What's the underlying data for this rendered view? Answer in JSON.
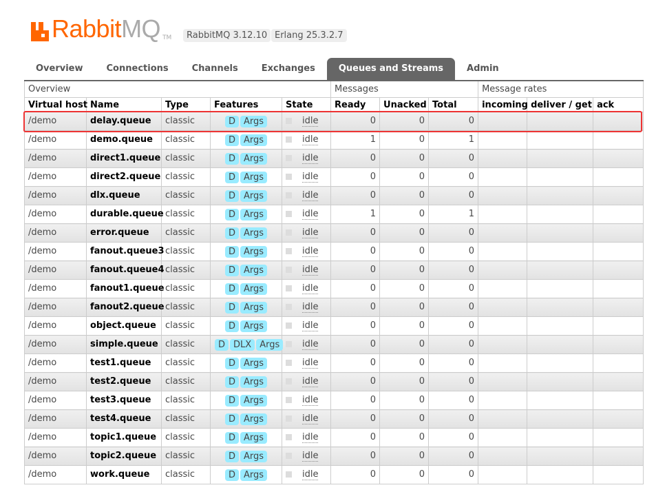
{
  "header": {
    "logo_brand": "Rabbit",
    "logo_product": "MQ",
    "logo_tm": "TM",
    "version": "RabbitMQ 3.12.10",
    "erlang": "Erlang 25.3.2.7"
  },
  "tabs": [
    {
      "label": "Overview"
    },
    {
      "label": "Connections"
    },
    {
      "label": "Channels"
    },
    {
      "label": "Exchanges"
    },
    {
      "label": "Queues and Streams",
      "active": true
    },
    {
      "label": "Admin"
    }
  ],
  "table": {
    "groups": {
      "overview": "Overview",
      "messages": "Messages",
      "rates": "Message rates"
    },
    "columns": [
      "Virtual host",
      "Name",
      "Type",
      "Features",
      "State",
      "Ready",
      "Unacked",
      "Total",
      "incoming",
      "deliver / get",
      "ack"
    ],
    "rows": [
      {
        "vhost": "/demo",
        "name": "delay.queue",
        "type": "classic",
        "features": [
          "D",
          "Args"
        ],
        "state": "idle",
        "ready": "0",
        "unacked": "0",
        "total": "0",
        "highlighted": true
      },
      {
        "vhost": "/demo",
        "name": "demo.queue",
        "type": "classic",
        "features": [
          "D",
          "Args"
        ],
        "state": "idle",
        "ready": "1",
        "unacked": "0",
        "total": "1"
      },
      {
        "vhost": "/demo",
        "name": "direct1.queue",
        "type": "classic",
        "features": [
          "D",
          "Args"
        ],
        "state": "idle",
        "ready": "0",
        "unacked": "0",
        "total": "0"
      },
      {
        "vhost": "/demo",
        "name": "direct2.queue",
        "type": "classic",
        "features": [
          "D",
          "Args"
        ],
        "state": "idle",
        "ready": "0",
        "unacked": "0",
        "total": "0"
      },
      {
        "vhost": "/demo",
        "name": "dlx.queue",
        "type": "classic",
        "features": [
          "D",
          "Args"
        ],
        "state": "idle",
        "ready": "0",
        "unacked": "0",
        "total": "0"
      },
      {
        "vhost": "/demo",
        "name": "durable.queue",
        "type": "classic",
        "features": [
          "D",
          "Args"
        ],
        "state": "idle",
        "ready": "1",
        "unacked": "0",
        "total": "1"
      },
      {
        "vhost": "/demo",
        "name": "error.queue",
        "type": "classic",
        "features": [
          "D",
          "Args"
        ],
        "state": "idle",
        "ready": "0",
        "unacked": "0",
        "total": "0"
      },
      {
        "vhost": "/demo",
        "name": "fanout.queue3",
        "type": "classic",
        "features": [
          "D",
          "Args"
        ],
        "state": "idle",
        "ready": "0",
        "unacked": "0",
        "total": "0"
      },
      {
        "vhost": "/demo",
        "name": "fanout.queue4",
        "type": "classic",
        "features": [
          "D",
          "Args"
        ],
        "state": "idle",
        "ready": "0",
        "unacked": "0",
        "total": "0"
      },
      {
        "vhost": "/demo",
        "name": "fanout1.queue",
        "type": "classic",
        "features": [
          "D",
          "Args"
        ],
        "state": "idle",
        "ready": "0",
        "unacked": "0",
        "total": "0"
      },
      {
        "vhost": "/demo",
        "name": "fanout2.queue",
        "type": "classic",
        "features": [
          "D",
          "Args"
        ],
        "state": "idle",
        "ready": "0",
        "unacked": "0",
        "total": "0"
      },
      {
        "vhost": "/demo",
        "name": "object.queue",
        "type": "classic",
        "features": [
          "D",
          "Args"
        ],
        "state": "idle",
        "ready": "0",
        "unacked": "0",
        "total": "0"
      },
      {
        "vhost": "/demo",
        "name": "simple.queue",
        "type": "classic",
        "features": [
          "D",
          "DLX",
          "Args"
        ],
        "state": "idle",
        "ready": "0",
        "unacked": "0",
        "total": "0"
      },
      {
        "vhost": "/demo",
        "name": "test1.queue",
        "type": "classic",
        "features": [
          "D",
          "Args"
        ],
        "state": "idle",
        "ready": "0",
        "unacked": "0",
        "total": "0"
      },
      {
        "vhost": "/demo",
        "name": "test2.queue",
        "type": "classic",
        "features": [
          "D",
          "Args"
        ],
        "state": "idle",
        "ready": "0",
        "unacked": "0",
        "total": "0"
      },
      {
        "vhost": "/demo",
        "name": "test3.queue",
        "type": "classic",
        "features": [
          "D",
          "Args"
        ],
        "state": "idle",
        "ready": "0",
        "unacked": "0",
        "total": "0"
      },
      {
        "vhost": "/demo",
        "name": "test4.queue",
        "type": "classic",
        "features": [
          "D",
          "Args"
        ],
        "state": "idle",
        "ready": "0",
        "unacked": "0",
        "total": "0"
      },
      {
        "vhost": "/demo",
        "name": "topic1.queue",
        "type": "classic",
        "features": [
          "D",
          "Args"
        ],
        "state": "idle",
        "ready": "0",
        "unacked": "0",
        "total": "0"
      },
      {
        "vhost": "/demo",
        "name": "topic2.queue",
        "type": "classic",
        "features": [
          "D",
          "Args"
        ],
        "state": "idle",
        "ready": "0",
        "unacked": "0",
        "total": "0"
      },
      {
        "vhost": "/demo",
        "name": "work.queue",
        "type": "classic",
        "features": [
          "D",
          "Args"
        ],
        "state": "idle",
        "ready": "0",
        "unacked": "0",
        "total": "0"
      }
    ]
  },
  "colors": {
    "brand": "#ff6600",
    "highlight": "#ee3333",
    "active_tab": "#666666",
    "feature_badge": "#99ebff"
  }
}
